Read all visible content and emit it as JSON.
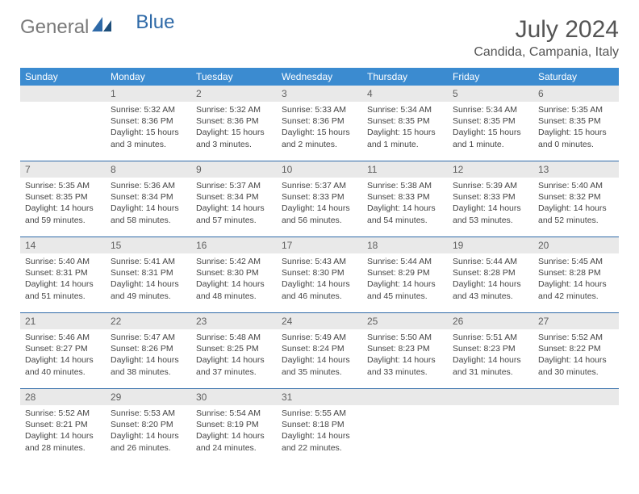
{
  "logo": {
    "part1": "General",
    "part2": "Blue"
  },
  "title": "July 2024",
  "location": "Candida, Campania, Italy",
  "colors": {
    "header_bg": "#3b8bd0",
    "daynum_bg": "#e9e9e9",
    "row_divider": "#2f6aa8",
    "text": "#444444",
    "title_text": "#555555"
  },
  "weekdays": [
    "Sunday",
    "Monday",
    "Tuesday",
    "Wednesday",
    "Thursday",
    "Friday",
    "Saturday"
  ],
  "start_offset": 1,
  "days": [
    {
      "n": "1",
      "sr": "5:32 AM",
      "ss": "8:36 PM",
      "dl": "15 hours and 3 minutes."
    },
    {
      "n": "2",
      "sr": "5:32 AM",
      "ss": "8:36 PM",
      "dl": "15 hours and 3 minutes."
    },
    {
      "n": "3",
      "sr": "5:33 AM",
      "ss": "8:36 PM",
      "dl": "15 hours and 2 minutes."
    },
    {
      "n": "4",
      "sr": "5:34 AM",
      "ss": "8:35 PM",
      "dl": "15 hours and 1 minute."
    },
    {
      "n": "5",
      "sr": "5:34 AM",
      "ss": "8:35 PM",
      "dl": "15 hours and 1 minute."
    },
    {
      "n": "6",
      "sr": "5:35 AM",
      "ss": "8:35 PM",
      "dl": "15 hours and 0 minutes."
    },
    {
      "n": "7",
      "sr": "5:35 AM",
      "ss": "8:35 PM",
      "dl": "14 hours and 59 minutes."
    },
    {
      "n": "8",
      "sr": "5:36 AM",
      "ss": "8:34 PM",
      "dl": "14 hours and 58 minutes."
    },
    {
      "n": "9",
      "sr": "5:37 AM",
      "ss": "8:34 PM",
      "dl": "14 hours and 57 minutes."
    },
    {
      "n": "10",
      "sr": "5:37 AM",
      "ss": "8:33 PM",
      "dl": "14 hours and 56 minutes."
    },
    {
      "n": "11",
      "sr": "5:38 AM",
      "ss": "8:33 PM",
      "dl": "14 hours and 54 minutes."
    },
    {
      "n": "12",
      "sr": "5:39 AM",
      "ss": "8:33 PM",
      "dl": "14 hours and 53 minutes."
    },
    {
      "n": "13",
      "sr": "5:40 AM",
      "ss": "8:32 PM",
      "dl": "14 hours and 52 minutes."
    },
    {
      "n": "14",
      "sr": "5:40 AM",
      "ss": "8:31 PM",
      "dl": "14 hours and 51 minutes."
    },
    {
      "n": "15",
      "sr": "5:41 AM",
      "ss": "8:31 PM",
      "dl": "14 hours and 49 minutes."
    },
    {
      "n": "16",
      "sr": "5:42 AM",
      "ss": "8:30 PM",
      "dl": "14 hours and 48 minutes."
    },
    {
      "n": "17",
      "sr": "5:43 AM",
      "ss": "8:30 PM",
      "dl": "14 hours and 46 minutes."
    },
    {
      "n": "18",
      "sr": "5:44 AM",
      "ss": "8:29 PM",
      "dl": "14 hours and 45 minutes."
    },
    {
      "n": "19",
      "sr": "5:44 AM",
      "ss": "8:28 PM",
      "dl": "14 hours and 43 minutes."
    },
    {
      "n": "20",
      "sr": "5:45 AM",
      "ss": "8:28 PM",
      "dl": "14 hours and 42 minutes."
    },
    {
      "n": "21",
      "sr": "5:46 AM",
      "ss": "8:27 PM",
      "dl": "14 hours and 40 minutes."
    },
    {
      "n": "22",
      "sr": "5:47 AM",
      "ss": "8:26 PM",
      "dl": "14 hours and 38 minutes."
    },
    {
      "n": "23",
      "sr": "5:48 AM",
      "ss": "8:25 PM",
      "dl": "14 hours and 37 minutes."
    },
    {
      "n": "24",
      "sr": "5:49 AM",
      "ss": "8:24 PM",
      "dl": "14 hours and 35 minutes."
    },
    {
      "n": "25",
      "sr": "5:50 AM",
      "ss": "8:23 PM",
      "dl": "14 hours and 33 minutes."
    },
    {
      "n": "26",
      "sr": "5:51 AM",
      "ss": "8:23 PM",
      "dl": "14 hours and 31 minutes."
    },
    {
      "n": "27",
      "sr": "5:52 AM",
      "ss": "8:22 PM",
      "dl": "14 hours and 30 minutes."
    },
    {
      "n": "28",
      "sr": "5:52 AM",
      "ss": "8:21 PM",
      "dl": "14 hours and 28 minutes."
    },
    {
      "n": "29",
      "sr": "5:53 AM",
      "ss": "8:20 PM",
      "dl": "14 hours and 26 minutes."
    },
    {
      "n": "30",
      "sr": "5:54 AM",
      "ss": "8:19 PM",
      "dl": "14 hours and 24 minutes."
    },
    {
      "n": "31",
      "sr": "5:55 AM",
      "ss": "8:18 PM",
      "dl": "14 hours and 22 minutes."
    }
  ],
  "labels": {
    "sunrise": "Sunrise:",
    "sunset": "Sunset:",
    "daylight": "Daylight:"
  }
}
